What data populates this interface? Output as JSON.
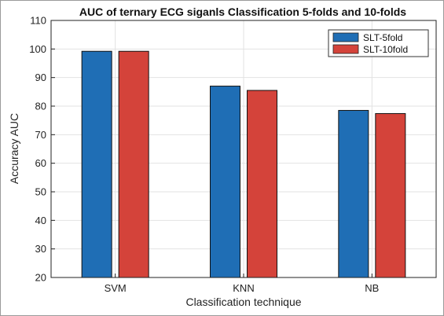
{
  "chart_data": {
    "type": "bar",
    "title": "AUC of ternary ECG siganls Classification 5-folds and 10-folds",
    "xlabel": "Classification technique",
    "ylabel": "Accuracy AUC",
    "categories": [
      "SVM",
      "KNN",
      "NB"
    ],
    "series": [
      {
        "name": "SLT-5fold",
        "values": [
          99.2,
          87.0,
          78.5
        ],
        "color": "#1f6eb5"
      },
      {
        "name": "SLT-10fold",
        "values": [
          99.2,
          85.5,
          77.4
        ],
        "color": "#d4433a"
      }
    ],
    "ylim": [
      20,
      110
    ],
    "yticks": [
      "20",
      "30",
      "40",
      "50",
      "60",
      "70",
      "80",
      "90",
      "100",
      "110"
    ],
    "grid": true,
    "legend_position": "top-right"
  }
}
